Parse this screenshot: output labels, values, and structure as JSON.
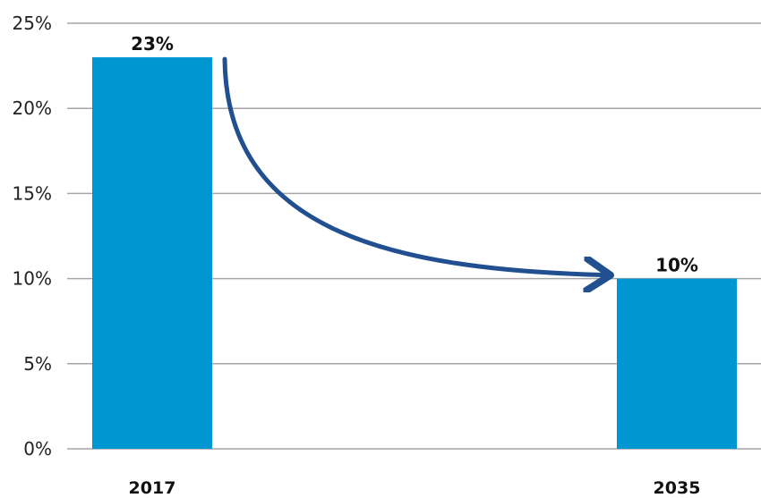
{
  "chart_data": {
    "type": "bar",
    "title": "",
    "xlabel": "",
    "ylabel": "",
    "categories": [
      "2017",
      "2035"
    ],
    "values": [
      23,
      10
    ],
    "data_labels": [
      "23%",
      "10%"
    ],
    "ylim": [
      0,
      25
    ],
    "y_ticks": [
      0,
      5,
      10,
      15,
      20,
      25
    ],
    "y_tick_labels": [
      "0%",
      "5%",
      "10%",
      "15%",
      "20%",
      "25%"
    ],
    "grid": true,
    "legend": "none",
    "bar_color": "#0096d2",
    "grid_color": "#a6a6a6",
    "annotation": {
      "type": "arrow",
      "from_category": "2017",
      "to_category": "2035",
      "color": "#214f8f"
    }
  }
}
